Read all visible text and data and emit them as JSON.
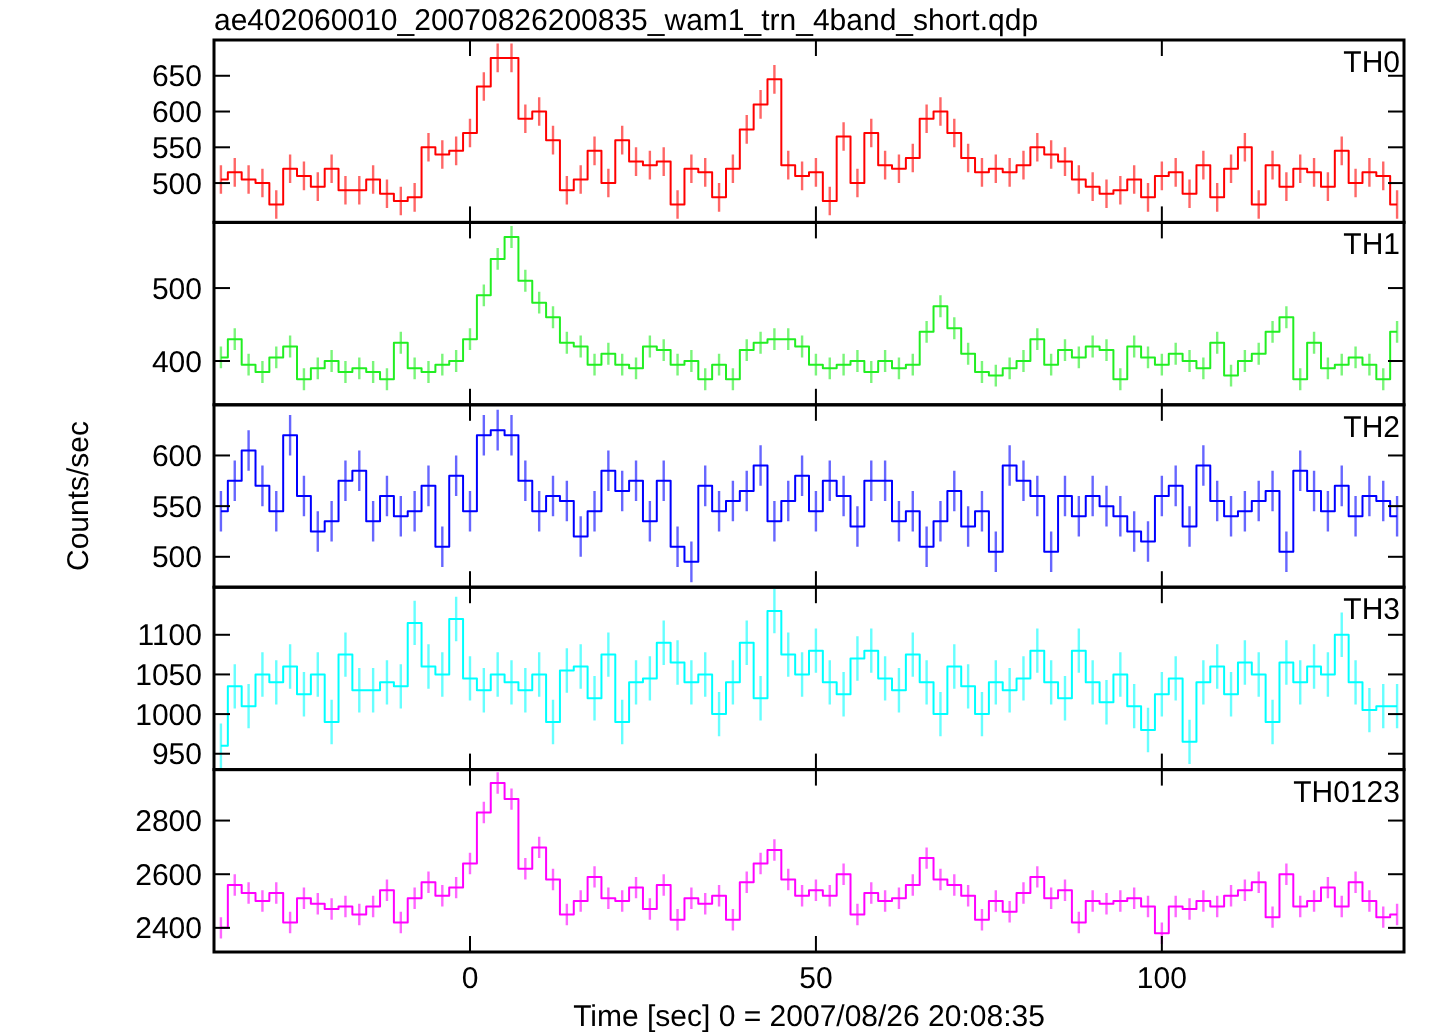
{
  "chart_data": [
    {
      "type": "step",
      "title": "ae402060010_20070826200835_wam1_trn_4band_short.qdp",
      "x": [
        -36,
        -34,
        -32,
        -30,
        -28,
        -26,
        -24,
        -22,
        -20,
        -18,
        -16,
        -14,
        -12,
        -10,
        -8,
        -6,
        -4,
        -2,
        0,
        2,
        4,
        6,
        8,
        10,
        12,
        14,
        16,
        18,
        20,
        22,
        24,
        26,
        28,
        30,
        32,
        34,
        36,
        38,
        40,
        42,
        44,
        46,
        48,
        50,
        52,
        54,
        56,
        58,
        60,
        62,
        64,
        66,
        68,
        70,
        72,
        74,
        76,
        78,
        80,
        82,
        84,
        86,
        88,
        90,
        92,
        94,
        96,
        98,
        100,
        102,
        104,
        106,
        108,
        110,
        112,
        114,
        116,
        118,
        120,
        122,
        124,
        126,
        128,
        130,
        132,
        134
      ],
      "xlim": [
        -37,
        135
      ],
      "xticks": [
        0,
        50,
        100
      ],
      "ylim": [
        445,
        700
      ],
      "yticks": [
        500,
        550,
        600,
        650
      ],
      "tick_labels": "y",
      "series": [
        {
          "name": "TH0",
          "color": "#ff0000",
          "values": [
            505,
            515,
            505,
            500,
            470,
            520,
            510,
            495,
            520,
            490,
            490,
            505,
            485,
            475,
            480,
            550,
            540,
            545,
            570,
            635,
            675,
            675,
            590,
            600,
            560,
            490,
            505,
            545,
            500,
            560,
            530,
            525,
            530,
            470,
            520,
            515,
            480,
            520,
            575,
            610,
            645,
            525,
            510,
            515,
            475,
            565,
            500,
            570,
            525,
            520,
            535,
            590,
            600,
            570,
            535,
            515,
            520,
            515,
            525,
            550,
            540,
            530,
            505,
            495,
            485,
            490,
            505,
            480,
            510,
            515,
            485,
            525,
            480,
            520,
            550,
            470,
            525,
            495,
            520,
            515,
            495,
            545,
            500,
            515,
            510,
            470
          ],
          "errors": [
            20,
            20,
            20,
            20,
            20,
            20,
            20,
            20,
            20,
            20,
            20,
            20,
            20,
            20,
            20,
            20,
            20,
            20,
            20,
            20,
            20,
            20,
            20,
            20,
            20,
            20,
            20,
            20,
            20,
            20,
            20,
            20,
            20,
            20,
            20,
            20,
            20,
            20,
            20,
            20,
            20,
            20,
            20,
            20,
            20,
            20,
            20,
            20,
            20,
            20,
            20,
            20,
            20,
            20,
            20,
            20,
            20,
            20,
            20,
            20,
            20,
            20,
            20,
            20,
            20,
            20,
            20,
            20,
            20,
            20,
            20,
            20,
            20,
            20,
            20,
            20,
            20,
            20,
            20,
            20,
            20,
            20,
            20,
            20,
            20,
            20
          ]
        }
      ]
    },
    {
      "type": "step",
      "x": [
        -36,
        -34,
        -32,
        -30,
        -28,
        -26,
        -24,
        -22,
        -20,
        -18,
        -16,
        -14,
        -12,
        -10,
        -8,
        -6,
        -4,
        -2,
        0,
        2,
        4,
        6,
        8,
        10,
        12,
        14,
        16,
        18,
        20,
        22,
        24,
        26,
        28,
        30,
        32,
        34,
        36,
        38,
        40,
        42,
        44,
        46,
        48,
        50,
        52,
        54,
        56,
        58,
        60,
        62,
        64,
        66,
        68,
        70,
        72,
        74,
        76,
        78,
        80,
        82,
        84,
        86,
        88,
        90,
        92,
        94,
        96,
        98,
        100,
        102,
        104,
        106,
        108,
        110,
        112,
        114,
        116,
        118,
        120,
        122,
        124,
        126,
        128,
        130,
        132,
        134
      ],
      "xlim": [
        -37,
        135
      ],
      "xticks": [
        0,
        50,
        100
      ],
      "ylim": [
        340,
        590
      ],
      "yticks": [
        400,
        500
      ],
      "tick_labels": "y",
      "series": [
        {
          "name": "TH1",
          "color": "#22ee22",
          "values": [
            405,
            430,
            395,
            385,
            405,
            420,
            375,
            390,
            400,
            385,
            390,
            385,
            375,
            425,
            390,
            385,
            395,
            400,
            430,
            490,
            540,
            570,
            510,
            480,
            460,
            425,
            420,
            395,
            410,
            395,
            390,
            420,
            415,
            395,
            400,
            375,
            395,
            375,
            415,
            425,
            430,
            430,
            420,
            395,
            390,
            395,
            400,
            385,
            400,
            390,
            395,
            440,
            475,
            445,
            410,
            385,
            380,
            390,
            400,
            430,
            395,
            415,
            405,
            420,
            415,
            375,
            420,
            405,
            395,
            410,
            400,
            390,
            425,
            380,
            400,
            410,
            440,
            460,
            375,
            425,
            390,
            395,
            405,
            395,
            375,
            440
          ],
          "errors": [
            15,
            15,
            15,
            15,
            15,
            15,
            15,
            15,
            15,
            15,
            15,
            15,
            15,
            15,
            15,
            15,
            15,
            15,
            15,
            15,
            15,
            15,
            15,
            15,
            15,
            15,
            15,
            15,
            15,
            15,
            15,
            15,
            15,
            15,
            15,
            15,
            15,
            15,
            15,
            15,
            15,
            15,
            15,
            15,
            15,
            15,
            15,
            15,
            15,
            15,
            15,
            15,
            15,
            15,
            15,
            15,
            15,
            15,
            15,
            15,
            15,
            15,
            15,
            15,
            15,
            15,
            15,
            15,
            15,
            15,
            15,
            15,
            15,
            15,
            15,
            15,
            15,
            15,
            15,
            15,
            15,
            15,
            15,
            15,
            15,
            15
          ]
        }
      ]
    },
    {
      "type": "step",
      "ylabel": "Counts/sec",
      "x": [
        -36,
        -34,
        -32,
        -30,
        -28,
        -26,
        -24,
        -22,
        -20,
        -18,
        -16,
        -14,
        -12,
        -10,
        -8,
        -6,
        -4,
        -2,
        0,
        2,
        4,
        6,
        8,
        10,
        12,
        14,
        16,
        18,
        20,
        22,
        24,
        26,
        28,
        30,
        32,
        34,
        36,
        38,
        40,
        42,
        44,
        46,
        48,
        50,
        52,
        54,
        56,
        58,
        60,
        62,
        64,
        66,
        68,
        70,
        72,
        74,
        76,
        78,
        80,
        82,
        84,
        86,
        88,
        90,
        92,
        94,
        96,
        98,
        100,
        102,
        104,
        106,
        108,
        110,
        112,
        114,
        116,
        118,
        120,
        122,
        124,
        126,
        128,
        130,
        132,
        134
      ],
      "xlim": [
        -37,
        135
      ],
      "xticks": [
        0,
        50,
        100
      ],
      "ylim": [
        470,
        650
      ],
      "yticks": [
        500,
        550,
        600
      ],
      "tick_labels": "y",
      "series": [
        {
          "name": "TH2",
          "color": "#0000ff",
          "values": [
            545,
            575,
            605,
            570,
            545,
            620,
            560,
            525,
            535,
            575,
            585,
            535,
            560,
            540,
            545,
            570,
            510,
            580,
            545,
            620,
            625,
            620,
            575,
            545,
            560,
            555,
            520,
            545,
            585,
            565,
            575,
            535,
            575,
            510,
            495,
            570,
            545,
            555,
            565,
            590,
            535,
            555,
            580,
            545,
            575,
            560,
            530,
            575,
            575,
            535,
            545,
            510,
            535,
            565,
            530,
            545,
            505,
            590,
            575,
            560,
            505,
            560,
            540,
            560,
            550,
            540,
            525,
            515,
            560,
            570,
            530,
            590,
            555,
            540,
            545,
            555,
            565,
            505,
            585,
            565,
            545,
            570,
            540,
            560,
            555,
            540
          ],
          "errors": [
            20,
            20,
            20,
            20,
            20,
            20,
            20,
            20,
            20,
            20,
            20,
            20,
            20,
            20,
            20,
            20,
            20,
            20,
            20,
            20,
            20,
            20,
            20,
            20,
            20,
            20,
            20,
            20,
            20,
            20,
            20,
            20,
            20,
            20,
            20,
            20,
            20,
            20,
            20,
            20,
            20,
            20,
            20,
            20,
            20,
            20,
            20,
            20,
            20,
            20,
            20,
            20,
            20,
            20,
            20,
            20,
            20,
            20,
            20,
            20,
            20,
            20,
            20,
            20,
            20,
            20,
            20,
            20,
            20,
            20,
            20,
            20,
            20,
            20,
            20,
            20,
            20,
            20,
            20,
            20,
            20,
            20,
            20,
            20,
            20,
            20
          ]
        }
      ]
    },
    {
      "type": "step",
      "x": [
        -36,
        -34,
        -32,
        -30,
        -28,
        -26,
        -24,
        -22,
        -20,
        -18,
        -16,
        -14,
        -12,
        -10,
        -8,
        -6,
        -4,
        -2,
        0,
        2,
        4,
        6,
        8,
        10,
        12,
        14,
        16,
        18,
        20,
        22,
        24,
        26,
        28,
        30,
        32,
        34,
        36,
        38,
        40,
        42,
        44,
        46,
        48,
        50,
        52,
        54,
        56,
        58,
        60,
        62,
        64,
        66,
        68,
        70,
        72,
        74,
        76,
        78,
        80,
        82,
        84,
        86,
        88,
        90,
        92,
        94,
        96,
        98,
        100,
        102,
        104,
        106,
        108,
        110,
        112,
        114,
        116,
        118,
        120,
        122,
        124,
        126,
        128,
        130,
        132,
        134
      ],
      "xlim": [
        -37,
        135
      ],
      "xticks": [
        0,
        50,
        100
      ],
      "ylim": [
        930,
        1160
      ],
      "yticks": [
        950,
        1000,
        1050,
        1100
      ],
      "tick_labels": "y",
      "series": [
        {
          "name": "TH3",
          "color": "#00ffff",
          "values": [
            960,
            1035,
            1010,
            1050,
            1040,
            1060,
            1025,
            1050,
            990,
            1075,
            1030,
            1030,
            1040,
            1035,
            1115,
            1060,
            1050,
            1120,
            1045,
            1030,
            1050,
            1040,
            1030,
            1050,
            990,
            1055,
            1060,
            1020,
            1075,
            990,
            1040,
            1045,
            1090,
            1065,
            1040,
            1050,
            1000,
            1040,
            1090,
            1020,
            1130,
            1075,
            1050,
            1080,
            1040,
            1025,
            1070,
            1080,
            1045,
            1030,
            1075,
            1040,
            1000,
            1060,
            1035,
            1000,
            1040,
            1030,
            1045,
            1080,
            1040,
            1020,
            1080,
            1040,
            1015,
            1050,
            1010,
            980,
            1025,
            1045,
            965,
            1040,
            1060,
            1025,
            1065,
            1050,
            990,
            1065,
            1040,
            1060,
            1050,
            1100,
            1040,
            1005,
            1010,
            1010
          ],
          "errors": [
            28,
            28,
            28,
            28,
            28,
            28,
            28,
            28,
            28,
            28,
            28,
            28,
            28,
            28,
            28,
            28,
            28,
            28,
            28,
            28,
            28,
            28,
            28,
            28,
            28,
            28,
            28,
            28,
            28,
            28,
            28,
            28,
            28,
            28,
            28,
            28,
            28,
            28,
            28,
            28,
            28,
            28,
            28,
            28,
            28,
            28,
            28,
            28,
            28,
            28,
            28,
            28,
            28,
            28,
            28,
            28,
            28,
            28,
            28,
            28,
            28,
            28,
            28,
            28,
            28,
            28,
            28,
            28,
            28,
            28,
            28,
            28,
            28,
            28,
            28,
            28,
            28,
            28,
            28,
            28,
            28,
            28,
            28,
            28,
            28,
            28
          ]
        }
      ]
    },
    {
      "type": "step",
      "xlabel": "Time [sec] 0 = 2007/08/26 20:08:35",
      "x": [
        -36,
        -34,
        -32,
        -30,
        -28,
        -26,
        -24,
        -22,
        -20,
        -18,
        -16,
        -14,
        -12,
        -10,
        -8,
        -6,
        -4,
        -2,
        0,
        2,
        4,
        6,
        8,
        10,
        12,
        14,
        16,
        18,
        20,
        22,
        24,
        26,
        28,
        30,
        32,
        34,
        36,
        38,
        40,
        42,
        44,
        46,
        48,
        50,
        52,
        54,
        56,
        58,
        60,
        62,
        64,
        66,
        68,
        70,
        72,
        74,
        76,
        78,
        80,
        82,
        84,
        86,
        88,
        90,
        92,
        94,
        96,
        98,
        100,
        102,
        104,
        106,
        108,
        110,
        112,
        114,
        116,
        118,
        120,
        122,
        124,
        126,
        128,
        130,
        132,
        134
      ],
      "xlim": [
        -37,
        135
      ],
      "xticks": [
        0,
        50,
        100
      ],
      "ylim": [
        2310,
        2990
      ],
      "yticks": [
        2400,
        2600,
        2800
      ],
      "series": [
        {
          "name": "TH0123",
          "color": "#ff00ff",
          "values": [
            2400,
            2560,
            2530,
            2500,
            2530,
            2420,
            2510,
            2490,
            2470,
            2480,
            2450,
            2480,
            2540,
            2420,
            2510,
            2570,
            2520,
            2550,
            2640,
            2830,
            2940,
            2880,
            2620,
            2700,
            2580,
            2450,
            2500,
            2590,
            2510,
            2500,
            2550,
            2470,
            2560,
            2430,
            2510,
            2490,
            2520,
            2430,
            2570,
            2640,
            2690,
            2580,
            2520,
            2540,
            2520,
            2600,
            2450,
            2530,
            2500,
            2510,
            2560,
            2660,
            2580,
            2560,
            2520,
            2430,
            2500,
            2460,
            2530,
            2590,
            2510,
            2540,
            2420,
            2500,
            2490,
            2500,
            2510,
            2480,
            2380,
            2480,
            2470,
            2500,
            2480,
            2520,
            2540,
            2570,
            2440,
            2600,
            2480,
            2500,
            2550,
            2480,
            2570,
            2500,
            2440,
            2450
          ],
          "errors": [
            40,
            40,
            40,
            40,
            40,
            40,
            40,
            40,
            40,
            40,
            40,
            40,
            40,
            40,
            40,
            40,
            40,
            40,
            40,
            40,
            40,
            40,
            40,
            40,
            40,
            40,
            40,
            40,
            40,
            40,
            40,
            40,
            40,
            40,
            40,
            40,
            40,
            40,
            40,
            40,
            40,
            40,
            40,
            40,
            40,
            40,
            40,
            40,
            40,
            40,
            40,
            40,
            40,
            40,
            40,
            40,
            40,
            40,
            40,
            40,
            40,
            40,
            40,
            40,
            40,
            40,
            40,
            40,
            40,
            40,
            40,
            40,
            40,
            40,
            40,
            40,
            40,
            40,
            40,
            40,
            40,
            40,
            40,
            40,
            40,
            40
          ]
        }
      ]
    }
  ]
}
